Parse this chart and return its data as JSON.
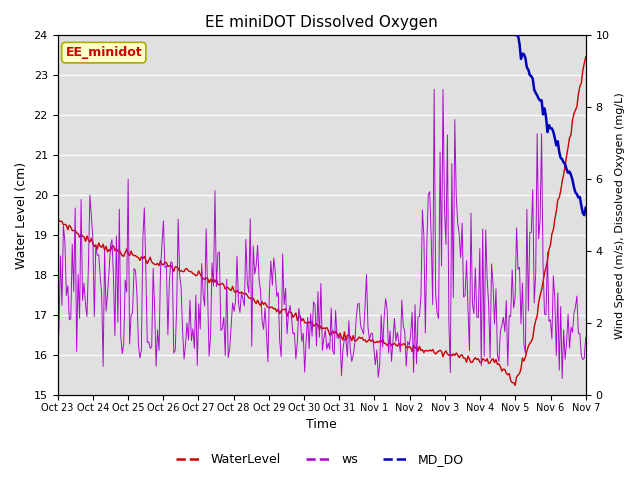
{
  "title": "EE miniDOT Dissolved Oxygen",
  "xlabel": "Time",
  "ylabel_left": "Water Level (cm)",
  "ylabel_right": "Wind Speed (m/s), Dissolved Oxygen (mg/L)",
  "annotation": "EE_minidot",
  "ylim_left": [
    15.0,
    24.0
  ],
  "ylim_right": [
    0.0,
    10.0
  ],
  "yticks_left": [
    15.0,
    16.0,
    17.0,
    18.0,
    19.0,
    20.0,
    21.0,
    22.0,
    23.0,
    24.0
  ],
  "yticks_right": [
    0.0,
    2.0,
    4.0,
    6.0,
    8.0,
    10.0
  ],
  "xtick_labels": [
    "Oct 23",
    "Oct 24",
    "Oct 25",
    "Oct 26",
    "Oct 27",
    "Oct 28",
    "Oct 29",
    "Oct 30",
    "Oct 31",
    "Nov 1",
    "Nov 2",
    "Nov 3",
    "Nov 4",
    "Nov 5",
    "Nov 6",
    "Nov 7"
  ],
  "color_waterlevel": "#cc0000",
  "color_ws": "#aa00cc",
  "color_do": "#0000bb",
  "bg_color": "#e0e0e0",
  "legend_labels": [
    "WaterLevel",
    "ws",
    "MD_DO"
  ]
}
